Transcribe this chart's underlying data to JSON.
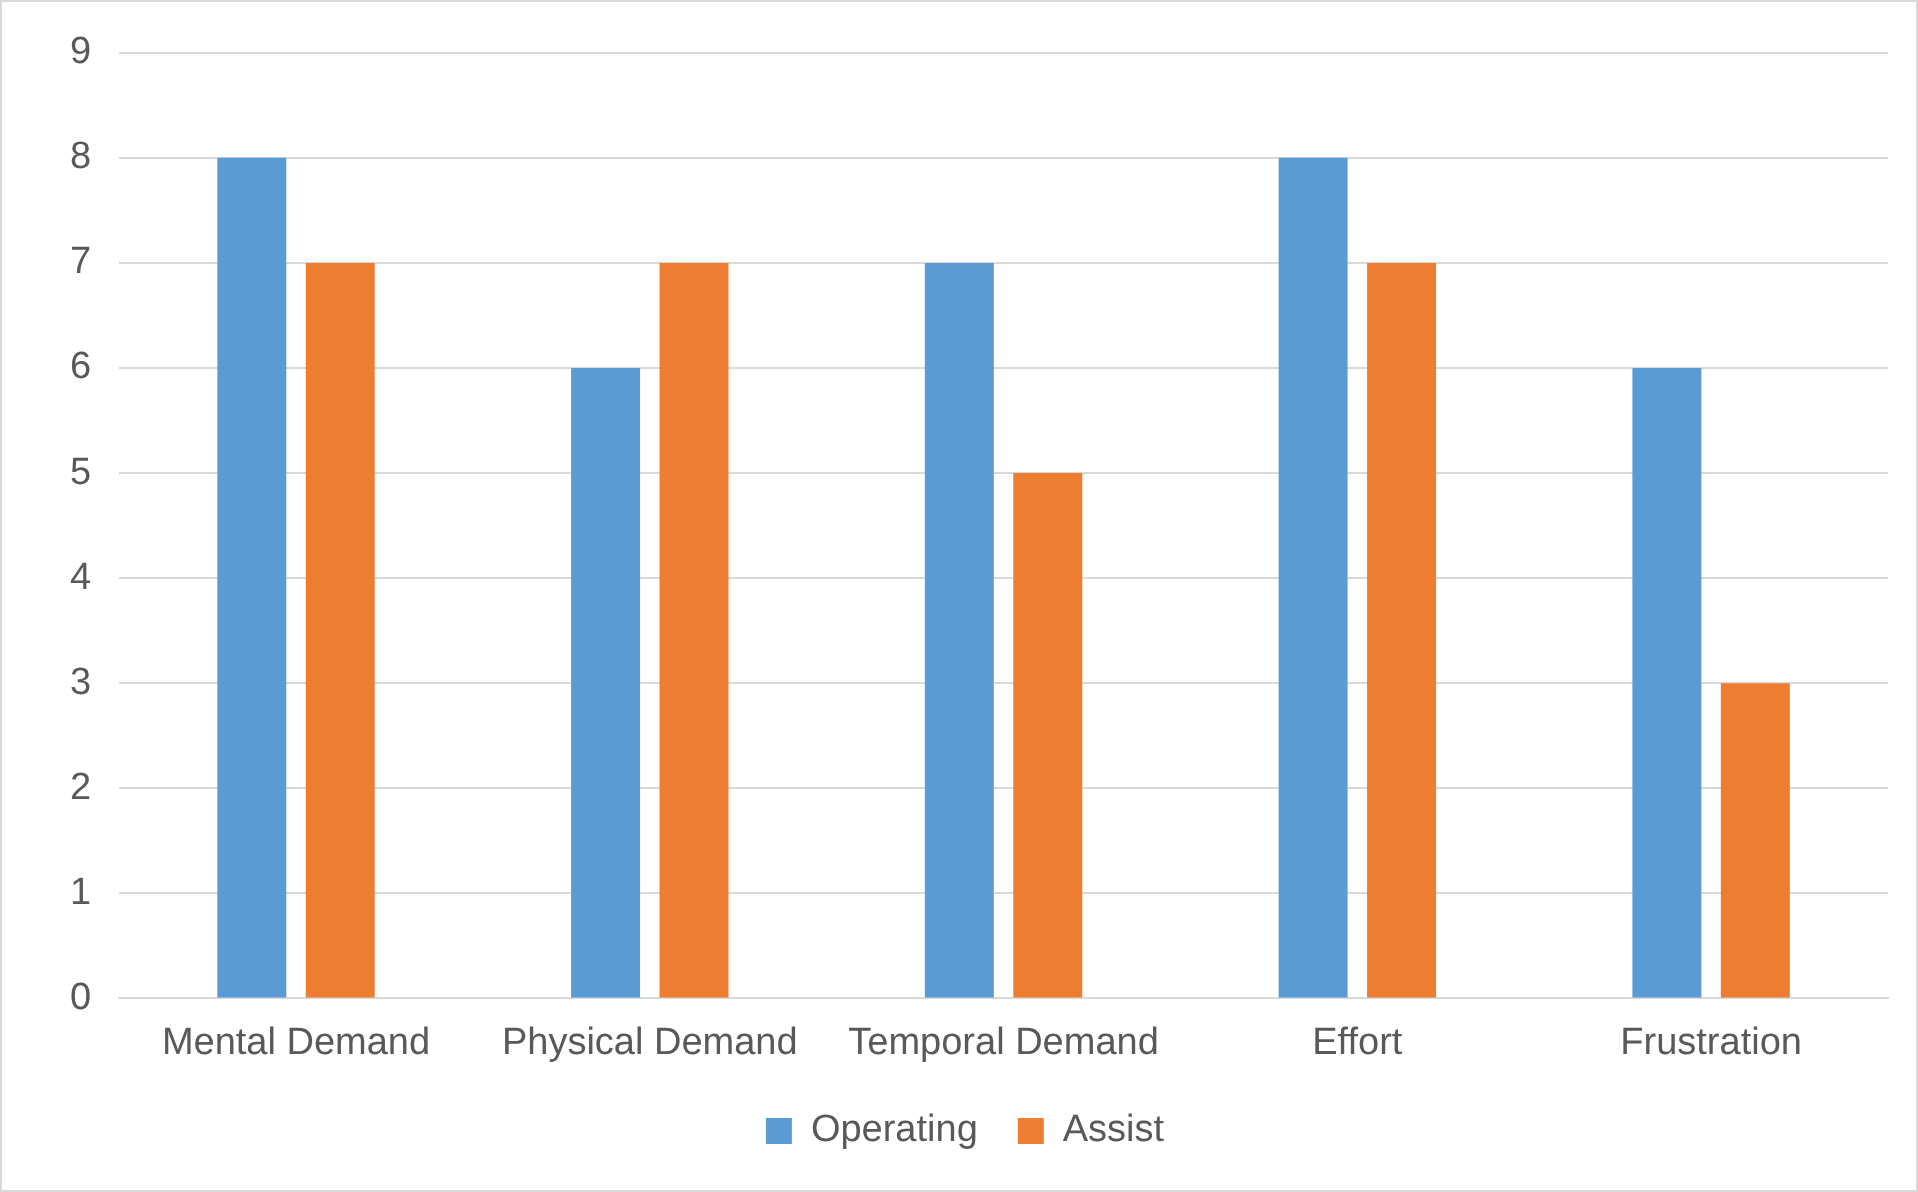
{
  "chart_data": {
    "type": "bar",
    "categories": [
      "Mental Demand",
      "Physical Demand",
      "Temporal Demand",
      "Effort",
      "Frustration"
    ],
    "series": [
      {
        "name": "Operating",
        "color": "#5b9bd5",
        "values": [
          8,
          6,
          7,
          8,
          6
        ]
      },
      {
        "name": "Assist",
        "color": "#ed7d31",
        "values": [
          7,
          7,
          5,
          7,
          3
        ]
      }
    ],
    "ylim": [
      0,
      9
    ],
    "yticks": [
      0,
      1,
      2,
      3,
      4,
      5,
      6,
      7,
      8,
      9
    ],
    "grid": "y",
    "legend": "bottom"
  }
}
